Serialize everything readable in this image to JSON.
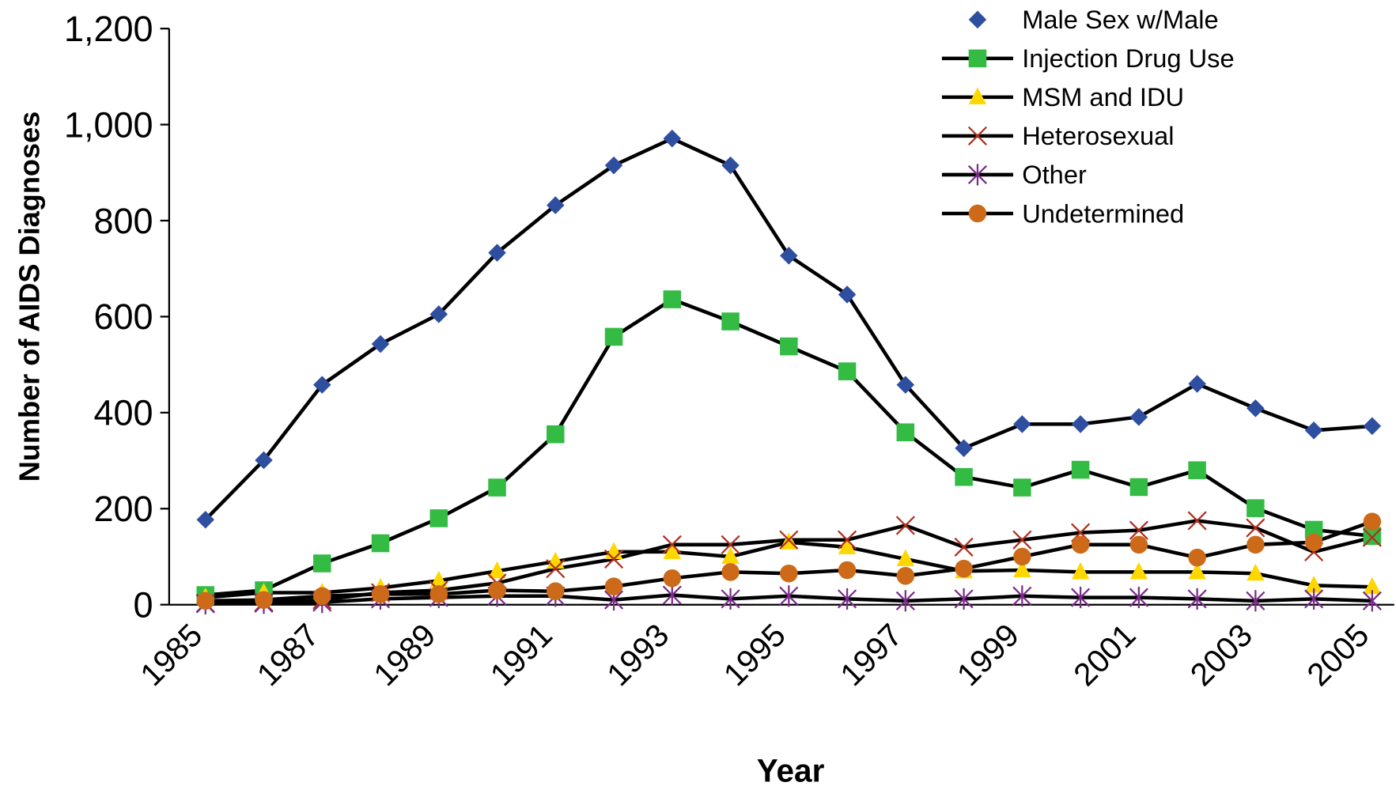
{
  "chart_data": {
    "type": "line",
    "x_label": "Year",
    "y_label": "Number of AIDS Diagnoses",
    "categories": [
      "1985",
      null,
      "1987",
      null,
      "1989",
      null,
      "1991",
      null,
      "1993",
      null,
      "1995",
      null,
      "1997",
      null,
      "1999",
      null,
      "2001",
      null,
      "2003",
      null,
      "2005"
    ],
    "ylim": [
      0,
      1200
    ],
    "yticks": [
      0,
      200,
      400,
      600,
      800,
      {
        "value": 1000,
        "label": "1,000"
      },
      {
        "value": 1200,
        "label": "1,200"
      }
    ],
    "grid": false,
    "legend": "top-right",
    "series": [
      {
        "name": "Male Sex w/Male",
        "color": "#2e4ea0",
        "marker": "diamond",
        "values": [
          177,
          301,
          458,
          543,
          605,
          733,
          832,
          915,
          971,
          915,
          727,
          646,
          458,
          326,
          376,
          376,
          391,
          460,
          409,
          363,
          372
        ]
      },
      {
        "name": "Injection Drug Use",
        "color": "#33bb44",
        "marker": "square",
        "values": [
          20,
          30,
          86,
          128,
          180,
          244,
          355,
          558,
          636,
          590,
          538,
          486,
          359,
          266,
          244,
          281,
          245,
          280,
          201,
          156,
          143
        ]
      },
      {
        "name": "MSM and IDU",
        "color": "#ffd700",
        "marker": "triangle",
        "values": [
          15,
          25,
          25,
          35,
          50,
          70,
          90,
          110,
          110,
          100,
          130,
          120,
          95,
          70,
          72,
          68,
          68,
          68,
          65,
          40,
          37
        ]
      },
      {
        "name": "Heterosexual",
        "color": "#b03020",
        "marker": "x",
        "values": [
          3,
          5,
          10,
          25,
          30,
          45,
          75,
          95,
          125,
          125,
          135,
          135,
          165,
          120,
          135,
          150,
          155,
          175,
          160,
          110,
          140
        ]
      },
      {
        "name": "Other",
        "color": "#7b2c8a",
        "marker": "star",
        "values": [
          2,
          3,
          5,
          12,
          15,
          18,
          18,
          10,
          20,
          12,
          18,
          12,
          8,
          12,
          18,
          15,
          15,
          12,
          8,
          12,
          8
        ]
      },
      {
        "name": "Undetermined",
        "color": "#cc6a1a",
        "marker": "circle",
        "values": [
          8,
          10,
          18,
          22,
          22,
          30,
          28,
          38,
          55,
          68,
          65,
          72,
          60,
          75,
          100,
          125,
          125,
          98,
          125,
          130,
          173
        ]
      }
    ]
  }
}
